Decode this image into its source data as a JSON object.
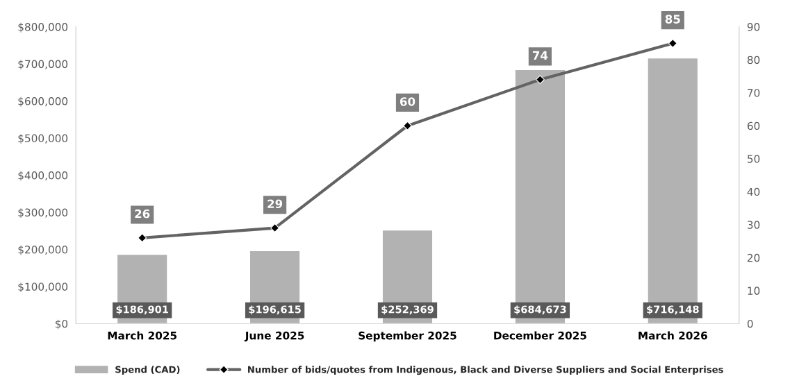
{
  "chart_data": {
    "type": "bar",
    "categories": [
      "March 2025",
      "June 2025",
      "September 2025",
      "December 2025",
      "March 2026"
    ],
    "series": [
      {
        "name": "Spend (CAD)",
        "color": "#b2b2b2",
        "values": [
          186901,
          196615,
          252369,
          684673,
          716148
        ],
        "value_labels": [
          "$186,901",
          "$196,615",
          "$252,369",
          "$684,673",
          "$716,148"
        ]
      },
      {
        "name": "Number of bids/quotes from Indigenous, Black and Diverse Suppliers and Social Enterprises",
        "type": "line",
        "axis": "y2",
        "color": "#636363",
        "marker": "diamond",
        "values": [
          26,
          29,
          60,
          74,
          85
        ],
        "value_labels": [
          "26",
          "29",
          "60",
          "74",
          "85"
        ]
      }
    ],
    "ylim": [
      0,
      800000
    ],
    "yticks": [
      {
        "value": 0,
        "label": "$0"
      },
      {
        "value": 100000,
        "label": "$100,000"
      },
      {
        "value": 200000,
        "label": "$200,000"
      },
      {
        "value": 300000,
        "label": "$300,000"
      },
      {
        "value": 400000,
        "label": "$400,000"
      },
      {
        "value": 500000,
        "label": "$500,000"
      },
      {
        "value": 600000,
        "label": "$600,000"
      },
      {
        "value": 700000,
        "label": "$700,000"
      },
      {
        "value": 800000,
        "label": "$800,000"
      }
    ],
    "y2lim": [
      0,
      90
    ],
    "y2ticks": [
      0,
      10,
      20,
      30,
      40,
      50,
      60,
      70,
      80,
      90
    ],
    "grid": false,
    "legend": "bottom"
  }
}
